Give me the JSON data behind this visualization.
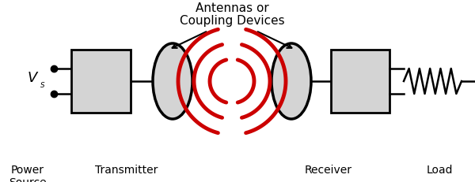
{
  "bg_color": "#ffffff",
  "line_color": "#000000",
  "red_color": "#cc0000",
  "gray_fill": "#d4d4d4",
  "title_line1": "Antennas or",
  "title_line2": "Coupling Devices",
  "label_power": "Power\nSource",
  "label_transmitter": "Transmitter",
  "label_receiver": "Receiver",
  "label_load": "Load",
  "figsize": [
    6.0,
    2.31
  ],
  "dpi": 100
}
